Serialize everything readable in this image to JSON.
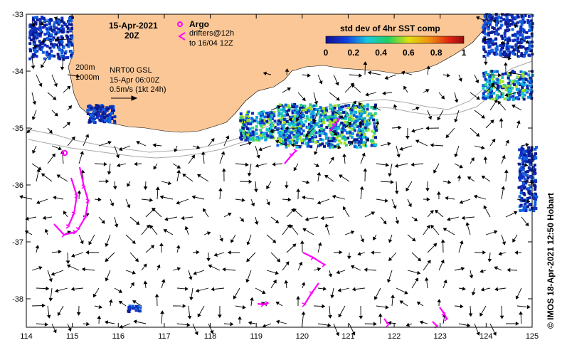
{
  "title": {
    "date": "15-Apr-2021",
    "time": "20Z"
  },
  "legend": {
    "argo_label": "Argo",
    "drifters_line1": "drifters@12h",
    "drifters_line2": "to 16/04 12Z",
    "colorbar_title": "std dev of 4hr SST comp",
    "colorbar_ticks": [
      "0",
      "0.2",
      "0.4",
      "0.6",
      "0.8",
      "1"
    ],
    "colorbar_range": [
      0,
      1
    ]
  },
  "annotations": {
    "isobath_200": "200m",
    "isobath_1000": "1000m",
    "model_name": "NRT00 GSL",
    "model_time": "15-Apr 06:00Z",
    "scale_label": "0.5m/s (1kt 24h)"
  },
  "axes": {
    "x_ticks": [
      "114",
      "115",
      "116",
      "117",
      "118",
      "119",
      "120",
      "121",
      "122",
      "123",
      "124",
      "125"
    ],
    "y_ticks": [
      "-33",
      "-34",
      "-35",
      "-36",
      "-37",
      "-38"
    ],
    "lon_range": [
      114,
      125
    ],
    "lat_range": [
      -38.5,
      -33
    ]
  },
  "credit": "© IMOS 18-Apr-2021 12:50 Hobart",
  "colors": {
    "land": "#fbc796",
    "sst_low": "#0a2aa0",
    "sst_mid": "#18c8d0",
    "sst_high": "#d01010",
    "drifter": "#ff00ff",
    "isobath": "#a8a8a8"
  },
  "icons": {
    "argo": "argo-float-marker",
    "drifter": "drifter-track-chevron"
  }
}
